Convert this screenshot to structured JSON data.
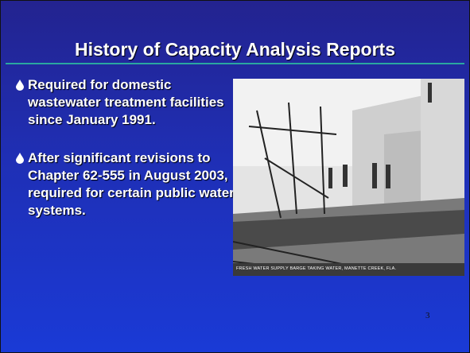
{
  "slide": {
    "title": "History of Capacity Analysis Reports",
    "bullets": [
      "Required for domestic wastewater treatment facilities since January 1991.",
      "After significant revisions to Chapter 62-555 in August 2003, required for certain public water systems."
    ],
    "photo_caption": "FRESH WATER SUPPLY BARGE TAKING WATER, MANETTE CREEK, FLA.",
    "page_number": "3"
  }
}
